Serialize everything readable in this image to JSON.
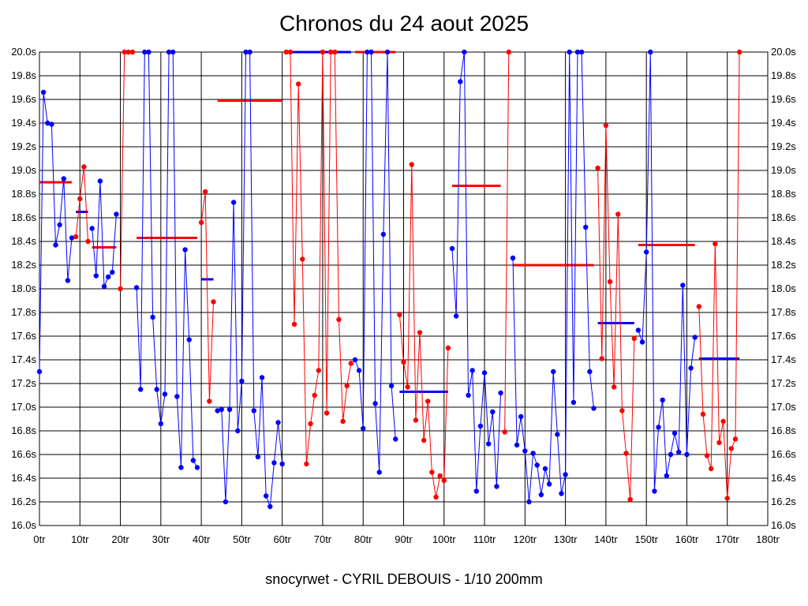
{
  "chart_data": {
    "type": "line",
    "title": "Chronos du 24 aout 2025",
    "footer": "snocyrwet - CYRIL DEBOUIS - 1/10 200mm",
    "xlim": [
      0,
      180
    ],
    "ylim": [
      16.0,
      20.0
    ],
    "x_ticks": [
      0,
      10,
      20,
      30,
      40,
      50,
      60,
      70,
      80,
      90,
      100,
      110,
      120,
      130,
      140,
      150,
      160,
      170,
      180
    ],
    "x_tick_labels": [
      "0tr",
      "10tr",
      "20tr",
      "30tr",
      "40tr",
      "50tr",
      "60tr",
      "70tr",
      "80tr",
      "90tr",
      "100tr",
      "110tr",
      "120tr",
      "130tr",
      "140tr",
      "150tr",
      "160tr",
      "170tr",
      "180tr"
    ],
    "y_ticks": [
      16.0,
      16.2,
      16.4,
      16.6,
      16.8,
      17.0,
      17.2,
      17.4,
      17.6,
      17.8,
      18.0,
      18.2,
      18.4,
      18.6,
      18.8,
      19.0,
      19.2,
      19.4,
      19.6,
      19.8,
      20.0
    ],
    "y_tick_labels": [
      "16.0s",
      "16.2s",
      "16.4s",
      "16.6s",
      "16.8s",
      "17.0s",
      "17.2s",
      "17.4s",
      "17.6s",
      "17.8s",
      "18.0s",
      "18.2s",
      "18.4s",
      "18.6s",
      "18.8s",
      "19.0s",
      "19.2s",
      "19.4s",
      "19.6s",
      "19.8s",
      "20.0s"
    ],
    "grid": true,
    "colors": {
      "blue": "#0000ff",
      "red": "#ff0000"
    },
    "series": [
      {
        "color": "blue",
        "points": [
          [
            0,
            17.3
          ],
          [
            1,
            19.66
          ],
          [
            2,
            19.4
          ],
          [
            3,
            19.39
          ],
          [
            4,
            18.37
          ],
          [
            5,
            18.54
          ],
          [
            6,
            18.93
          ],
          [
            7,
            18.07
          ],
          [
            8,
            18.43
          ]
        ]
      },
      {
        "color": "red",
        "points": [
          [
            9,
            18.44
          ],
          [
            10,
            18.76
          ],
          [
            11,
            19.03
          ],
          [
            12,
            18.4
          ]
        ]
      },
      {
        "color": "blue",
        "points": [
          [
            13,
            18.51
          ],
          [
            14,
            18.11
          ],
          [
            15,
            18.91
          ],
          [
            16,
            18.02
          ],
          [
            17,
            18.1
          ],
          [
            18,
            18.14
          ],
          [
            19,
            18.63
          ]
        ]
      },
      {
        "color": "red",
        "points": [
          [
            20,
            18.0
          ],
          [
            21,
            20.0
          ],
          [
            22,
            20.0
          ],
          [
            23,
            20.0
          ]
        ]
      },
      {
        "color": "blue",
        "points": [
          [
            24,
            18.01
          ],
          [
            25,
            17.15
          ],
          [
            26,
            20.0
          ],
          [
            27,
            20.0
          ],
          [
            28,
            17.76
          ],
          [
            29,
            17.15
          ],
          [
            30,
            16.86
          ],
          [
            31,
            17.11
          ],
          [
            32,
            20.0
          ],
          [
            33,
            20.0
          ],
          [
            34,
            17.09
          ],
          [
            35,
            16.49
          ],
          [
            36,
            18.33
          ],
          [
            37,
            17.57
          ],
          [
            38,
            16.55
          ],
          [
            39,
            16.49
          ]
        ]
      },
      {
        "color": "red",
        "points": [
          [
            40,
            18.56
          ],
          [
            41,
            18.82
          ],
          [
            42,
            17.05
          ],
          [
            43,
            17.89
          ]
        ]
      },
      {
        "color": "blue",
        "points": [
          [
            44,
            16.97
          ],
          [
            45,
            16.98
          ],
          [
            46,
            16.2
          ],
          [
            47,
            16.98
          ],
          [
            48,
            18.73
          ],
          [
            49,
            16.8
          ],
          [
            50,
            17.22
          ],
          [
            51,
            20.0
          ],
          [
            52,
            20.0
          ],
          [
            53,
            16.97
          ],
          [
            54,
            16.58
          ],
          [
            55,
            17.25
          ],
          [
            56,
            16.25
          ],
          [
            57,
            16.16
          ],
          [
            58,
            16.53
          ],
          [
            59,
            16.87
          ],
          [
            60,
            16.52
          ]
        ]
      },
      {
        "color": "red",
        "points": [
          [
            61,
            20.0
          ],
          [
            62,
            20.0
          ],
          [
            63,
            17.7
          ],
          [
            64,
            19.73
          ],
          [
            65,
            18.25
          ],
          [
            66,
            16.52
          ],
          [
            67,
            16.86
          ],
          [
            68,
            17.1
          ],
          [
            69,
            17.31
          ],
          [
            70,
            20.0
          ],
          [
            71,
            16.95
          ],
          [
            72,
            20.0
          ],
          [
            73,
            20.0
          ],
          [
            74,
            17.74
          ],
          [
            75,
            16.88
          ],
          [
            76,
            17.18
          ],
          [
            77,
            17.37
          ]
        ]
      },
      {
        "color": "blue",
        "points": [
          [
            78,
            17.4
          ],
          [
            79,
            17.31
          ],
          [
            80,
            16.82
          ],
          [
            81,
            20.0
          ],
          [
            82,
            20.0
          ],
          [
            83,
            17.03
          ],
          [
            84,
            16.45
          ],
          [
            85,
            18.46
          ],
          [
            86,
            20.0
          ],
          [
            87,
            17.18
          ],
          [
            88,
            16.73
          ]
        ]
      },
      {
        "color": "red",
        "points": [
          [
            89,
            17.78
          ],
          [
            90,
            17.38
          ],
          [
            91,
            17.17
          ],
          [
            92,
            19.05
          ],
          [
            93,
            16.89
          ],
          [
            94,
            17.63
          ],
          [
            95,
            16.72
          ],
          [
            96,
            17.05
          ],
          [
            97,
            16.45
          ],
          [
            98,
            16.24
          ],
          [
            99,
            16.42
          ],
          [
            100,
            16.38
          ],
          [
            101,
            17.5
          ]
        ]
      },
      {
        "color": "blue",
        "points": [
          [
            102,
            18.34
          ],
          [
            103,
            17.77
          ],
          [
            104,
            19.75
          ],
          [
            105,
            20.0
          ],
          [
            106,
            17.1
          ],
          [
            107,
            17.31
          ],
          [
            108,
            16.29
          ],
          [
            109,
            16.84
          ],
          [
            110,
            17.29
          ],
          [
            111,
            16.69
          ],
          [
            112,
            16.96
          ],
          [
            113,
            16.33
          ],
          [
            114,
            17.12
          ]
        ]
      },
      {
        "color": "red",
        "points": [
          [
            115,
            16.79
          ],
          [
            116,
            20.0
          ]
        ]
      },
      {
        "color": "blue",
        "points": [
          [
            117,
            18.26
          ],
          [
            118,
            16.68
          ],
          [
            119,
            16.92
          ],
          [
            120,
            16.63
          ],
          [
            121,
            16.2
          ],
          [
            122,
            16.61
          ],
          [
            123,
            16.51
          ],
          [
            124,
            16.26
          ],
          [
            125,
            16.48
          ],
          [
            126,
            16.35
          ],
          [
            127,
            17.3
          ],
          [
            128,
            16.77
          ],
          [
            129,
            16.27
          ],
          [
            130,
            16.43
          ],
          [
            131,
            20.0
          ],
          [
            132,
            17.04
          ],
          [
            133,
            20.0
          ],
          [
            134,
            20.0
          ],
          [
            135,
            18.52
          ],
          [
            136,
            17.3
          ],
          [
            137,
            16.99
          ]
        ]
      },
      {
        "color": "red",
        "points": [
          [
            138,
            19.02
          ],
          [
            139,
            17.41
          ],
          [
            140,
            19.38
          ],
          [
            141,
            18.06
          ],
          [
            142,
            17.17
          ],
          [
            143,
            18.63
          ],
          [
            144,
            16.97
          ],
          [
            145,
            16.61
          ],
          [
            146,
            16.22
          ],
          [
            147,
            17.58
          ]
        ]
      },
      {
        "color": "blue",
        "points": [
          [
            148,
            17.65
          ],
          [
            149,
            17.55
          ],
          [
            150,
            18.31
          ],
          [
            151,
            20.0
          ],
          [
            152,
            16.29
          ],
          [
            153,
            16.83
          ],
          [
            154,
            17.06
          ],
          [
            155,
            16.42
          ],
          [
            156,
            16.6
          ],
          [
            157,
            16.78
          ],
          [
            158,
            16.62
          ],
          [
            159,
            18.03
          ],
          [
            160,
            16.6
          ],
          [
            161,
            17.33
          ],
          [
            162,
            17.59
          ]
        ]
      },
      {
        "color": "red",
        "points": [
          [
            163,
            17.85
          ],
          [
            164,
            16.94
          ],
          [
            165,
            16.59
          ],
          [
            166,
            16.48
          ],
          [
            167,
            18.38
          ],
          [
            168,
            16.7
          ],
          [
            169,
            16.88
          ],
          [
            170,
            16.23
          ],
          [
            171,
            16.65
          ],
          [
            172,
            16.73
          ],
          [
            173,
            20.0
          ]
        ]
      }
    ],
    "averages": [
      {
        "color": "red",
        "x": [
          0,
          8
        ],
        "y": 18.9
      },
      {
        "color": "blue",
        "x": [
          9,
          12
        ],
        "y": 18.65
      },
      {
        "color": "red",
        "x": [
          13,
          19
        ],
        "y": 18.35
      },
      {
        "color": "red",
        "x": [
          24,
          39
        ],
        "y": 18.43
      },
      {
        "color": "blue",
        "x": [
          40,
          43
        ],
        "y": 18.08
      },
      {
        "color": "red",
        "x": [
          44,
          60
        ],
        "y": 19.59
      },
      {
        "color": "blue",
        "x": [
          61,
          77
        ],
        "y": 20.0
      },
      {
        "color": "red",
        "x": [
          78,
          88
        ],
        "y": 20.0
      },
      {
        "color": "blue",
        "x": [
          89,
          101
        ],
        "y": 17.13
      },
      {
        "color": "red",
        "x": [
          102,
          114
        ],
        "y": 18.87
      },
      {
        "color": "red",
        "x": [
          117,
          137
        ],
        "y": 18.2
      },
      {
        "color": "blue",
        "x": [
          138,
          147
        ],
        "y": 17.71
      },
      {
        "color": "red",
        "x": [
          148,
          162
        ],
        "y": 18.37
      },
      {
        "color": "blue",
        "x": [
          163,
          173
        ],
        "y": 17.41
      }
    ]
  }
}
